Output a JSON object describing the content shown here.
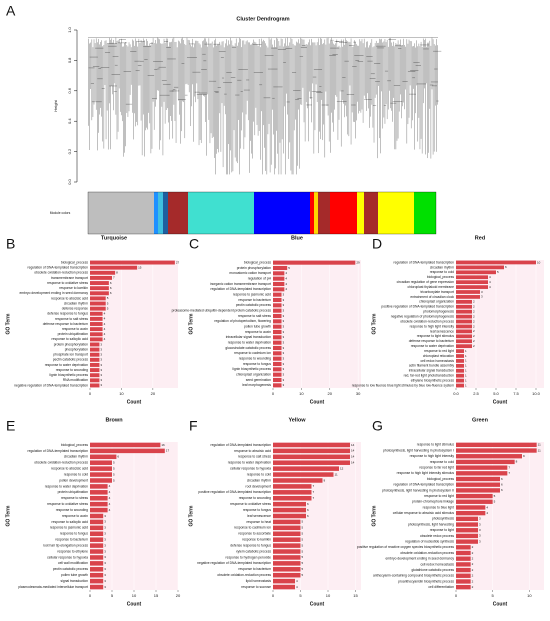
{
  "chart_data": [
    {
      "type": "dendrogram",
      "panel": "A",
      "title": "Cluster Dendrogram",
      "ylabel": "Height",
      "module_label": "Module colors",
      "ylim": [
        0,
        1
      ],
      "yticks": [
        {
          "value": 0,
          "label": "0.0"
        },
        {
          "value": 0.2,
          "label": "0.2"
        },
        {
          "value": 0.4,
          "label": "0.4"
        },
        {
          "value": 0.6,
          "label": "0.6"
        },
        {
          "value": 0.8,
          "label": "0.8"
        },
        {
          "value": 1,
          "label": "1.0"
        }
      ]
    },
    {
      "type": "bar",
      "panel": "B",
      "title": "Turquoise",
      "xlabel": "Count",
      "ylabel": "GO Term",
      "color": "#d9434b",
      "xlim": [
        0,
        28
      ],
      "xticks": [
        0,
        10,
        20
      ],
      "categories": [
        "biological_process",
        "regulation of DNA-templated transcription",
        "obsolete oxidation-reduction process",
        "transmembrane transport",
        "response to oxidative stress",
        "response to karrikin",
        "embryo development ending in seed dormancy",
        "response to abscisic acid",
        "circadian rhythm",
        "defense response",
        "defense response to fungus",
        "response to salt stress",
        "defense response to bacterium",
        "response to auxin",
        "protein ubiquitination",
        "response to salicylic acid",
        "protein phosphorylation",
        "phosphorylation",
        "phosphate ion transport",
        "pectin catabolic process",
        "response to water deprivation",
        "response to wounding",
        "lignin biosynthetic process",
        "RNA modification",
        "negative regulation of DNA-templated transcription"
      ],
      "values": [
        27,
        15,
        8,
        7,
        6,
        6,
        6,
        5,
        5,
        5,
        4,
        4,
        4,
        4,
        4,
        4,
        3,
        3,
        3,
        3,
        3,
        3,
        3,
        3,
        3
      ]
    },
    {
      "type": "bar",
      "panel": "C",
      "title": "Blue",
      "xlabel": "Count",
      "ylabel": "GO Term",
      "color": "#d9434b",
      "xlim": [
        0,
        31
      ],
      "xticks": [
        0,
        10,
        20,
        30
      ],
      "categories": [
        "biological_process",
        "protein phosphorylation",
        "monoatomic cation transport",
        "regulation of pH",
        "inorganic cation transmembrane transport",
        "regulation of DNA-templated transcription",
        "response to jasmonic acid",
        "response to bacterium",
        "pectin catabolic process",
        "proteasome-mediated ubiquitin-dependent protein catabolic process",
        "response to salt stress",
        "regulation of photoperiodism, flowering",
        "pollen tube growth",
        "response to auxin",
        "intracellular signal transduction",
        "response to water deprivation",
        "glucosinolate catabolic process",
        "response to cadmium ion",
        "response to wounding",
        "response to fungus",
        "lignin biosynthetic process",
        "chloroplast organization",
        "seed germination",
        "leaf morphogenesis"
      ],
      "values": [
        29,
        5,
        4,
        4,
        4,
        4,
        3,
        3,
        3,
        3,
        3,
        3,
        3,
        3,
        3,
        3,
        3,
        3,
        3,
        3,
        3,
        3,
        3,
        3
      ]
    },
    {
      "type": "bar",
      "panel": "D",
      "title": "Red",
      "xlabel": "Count",
      "ylabel": "GO Term",
      "color": "#d9434b",
      "xlim": [
        0,
        11
      ],
      "xticks": [
        {
          "value": 0,
          "label": "0.0"
        },
        {
          "value": 2.5,
          "label": "2.5"
        },
        {
          "value": 5,
          "label": "5.0"
        },
        {
          "value": 7.5,
          "label": "7.5"
        },
        {
          "value": 10,
          "label": "10.0"
        }
      ],
      "categories": [
        "regulation of DNA-templated transcription",
        "circadian rhythm",
        "response to cold",
        "biological_process",
        "circadian regulation of gene expression",
        "chloroplast thylakoid membrane",
        "tricarboxylate transport",
        "entrainment of circadian clock",
        "chloroplast organization",
        "positive regulation of DNA-templated transcription",
        "photomorphogenesis",
        "negative regulation of photomorphogenesis",
        "obsolete oxidation-reduction process",
        "response to high light intensity",
        "leaf senescence",
        "response to light stimulus",
        "defense response to bacterium",
        "response to water deprivation",
        "response to red light",
        "chloroplast relocation",
        "cell redox homeostasis",
        "actin filament bundle assembly",
        "intracellular signal transduction",
        "red, far-red light phototransduction",
        "ethylene biosynthetic process",
        "response to low fluence blue light stimulus by blue low-fluence system"
      ],
      "values": [
        10,
        6,
        5,
        4,
        4,
        4,
        3,
        3,
        2,
        2,
        2,
        2,
        2,
        2,
        2,
        2,
        2,
        2,
        1,
        1,
        1,
        1,
        1,
        1,
        1,
        1
      ]
    },
    {
      "type": "bar",
      "panel": "E",
      "title": "Brown",
      "xlabel": "Count",
      "ylabel": "GO Term",
      "color": "#d9434b",
      "xlim": [
        0,
        20
      ],
      "xticks": [
        0,
        5,
        10,
        15,
        20
      ],
      "categories": [
        "biological_process",
        "regulation of DNA-templated transcription",
        "circadian rhythm",
        "obsolete oxidation-reduction process",
        "response to abscisic acid",
        "response to cold",
        "pollen development",
        "response to water deprivation",
        "protein ubiquitination",
        "response to stress",
        "response to oxidative stress",
        "response to wounding",
        "response to auxin",
        "response to salicylic acid",
        "response to jasmonic acid",
        "response to fungus",
        "response to bacterium",
        "root hair tip elongation process",
        "response to ethylene",
        "cellular response to hypoxia",
        "cell wall modification",
        "pectin catabolic process",
        "pollen tube growth",
        "signal transduction",
        "plasmodesmata-mediated intercellular transport"
      ],
      "values": [
        16,
        17,
        6,
        5,
        5,
        5,
        5,
        4,
        4,
        4,
        4,
        4,
        3,
        3,
        3,
        3,
        3,
        3,
        3,
        3,
        3,
        3,
        3,
        3,
        3
      ]
    },
    {
      "type": "bar",
      "panel": "F",
      "title": "Yellow",
      "xlabel": "Count",
      "ylabel": "GO Term",
      "color": "#d9434b",
      "xlim": [
        0,
        16
      ],
      "xticks": [
        0,
        5,
        10,
        15
      ],
      "categories": [
        "regulation of DNA-templated transcription",
        "response to abscisic acid",
        "response to salt stress",
        "response to water deprivation",
        "cellular response to hypoxia",
        "response to cold",
        "circadian rhythm",
        "root development",
        "positive regulation of DNA-templated transcription",
        "response to wounding",
        "response to oxidative stress",
        "response to fungus",
        "leaf senescence",
        "response to heat",
        "response to cadmium ion",
        "response to ascorbate",
        "response to karrikin",
        "defense response to fungus",
        "xylem catabolic process",
        "response to hydrogen peroxide",
        "negative regulation of DNA-templated transcription",
        "response to bacterium",
        "obsolete oxidation-reduction process",
        "lipid homeostasis",
        "response to sucrose"
      ],
      "values": [
        14,
        14,
        14,
        14,
        12,
        11,
        9,
        7,
        7,
        7,
        6,
        6,
        6,
        5,
        5,
        5,
        5,
        5,
        5,
        5,
        5,
        5,
        5,
        4,
        4
      ]
    },
    {
      "type": "bar",
      "panel": "G",
      "title": "Green",
      "xlabel": "Count",
      "ylabel": "GO Term",
      "color": "#d9434b",
      "xlim": [
        0,
        12
      ],
      "xticks": [
        0,
        5,
        10
      ],
      "categories": [
        "response to light stimulus",
        "photosynthesis, light harvesting in photosystem I",
        "response to high light intensity",
        "response to cold",
        "response to far red light",
        "response to high light intensity stimulus",
        "biological_process",
        "regulation of DNA-templated transcription",
        "photosynthesis, light harvesting in photosystem II",
        "response to red light",
        "protein-chromophore linkage",
        "response to blue light",
        "cellular response to abscisic acid stimulus",
        "photosynthesis",
        "photosynthesis, light harvesting",
        "response to light",
        "obsolete redox process",
        "regulation of nucleotide synthesis",
        "positive regulation of reactive oxygen species biosynthetic process",
        "obsolete oxidation-reduction process",
        "embryo development ending in seed dormancy",
        "cell redox homeostasis",
        "glutathione catabolic process",
        "anthocyanin-containing compound biosynthetic process",
        "proanthocyanidin biosynthetic process",
        "cell differentiation"
      ],
      "values": [
        11,
        11,
        9,
        8,
        7,
        7,
        6,
        6,
        6,
        5,
        5,
        4,
        4,
        3,
        3,
        3,
        3,
        3,
        2,
        2,
        2,
        2,
        2,
        2,
        2,
        2
      ]
    }
  ]
}
